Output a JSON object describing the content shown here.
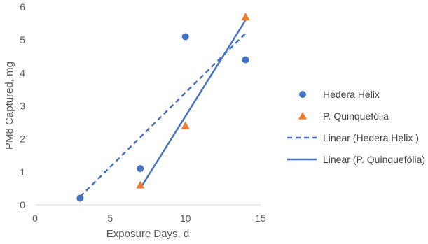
{
  "chart_data": {
    "type": "scatter",
    "title": "",
    "xlabel": "Exposure Days, d",
    "ylabel": "PM8 Captured, mg",
    "xlim": [
      0,
      15
    ],
    "ylim": [
      0,
      6
    ],
    "xticks": [
      0,
      5,
      10,
      15
    ],
    "yticks": [
      0,
      1,
      2,
      3,
      4,
      5,
      6
    ],
    "grid": false,
    "legend_position": "right",
    "series": [
      {
        "name": "Hedera Helix",
        "marker": "circle",
        "color": "#4472C4",
        "points": [
          [
            3,
            0.2
          ],
          [
            7,
            1.1
          ],
          [
            10,
            5.1
          ],
          [
            14,
            4.4
          ]
        ]
      },
      {
        "name": "P. Quinquefólia",
        "marker": "triangle",
        "color": "#ED7D31",
        "points": [
          [
            7,
            0.6
          ],
          [
            10,
            2.4
          ],
          [
            14,
            5.7
          ]
        ]
      }
    ],
    "trendlines": [
      {
        "name": "Linear (Hedera Helix )",
        "style": "dashed",
        "color": "#4472C4",
        "start": [
          3,
          0.25
        ],
        "end": [
          14,
          5.2
        ]
      },
      {
        "name": "Linear (P. Quinquefólia)",
        "style": "solid",
        "color": "#4472C4",
        "start": [
          7,
          0.5
        ],
        "end": [
          14,
          5.6
        ]
      }
    ]
  }
}
